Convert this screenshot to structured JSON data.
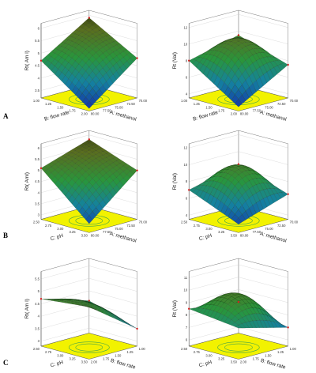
{
  "figure": {
    "panels": [
      {
        "label": "A",
        "row": 0
      },
      {
        "label": "B",
        "row": 1
      },
      {
        "label": "C",
        "row": 2
      }
    ]
  },
  "chart_data": [
    {
      "type": "surface",
      "title": "",
      "zlabel": "Rt( Am l)",
      "xlabel": "A: methanol",
      "ylabel": "B: flow rate",
      "x_ticks": [
        "70.00",
        "72.50",
        "75.00",
        "77.50",
        "80.00"
      ],
      "y_ticks": [
        "1.00",
        "1.25",
        "1.50",
        "1.75",
        "2.00"
      ],
      "z_ticks": [
        "3.5",
        "4",
        "4.5",
        "5",
        "5.5",
        "6"
      ],
      "zlim": [
        3.2,
        6.2
      ],
      "z_corners": {
        "front": 3.3,
        "left": 4.7,
        "right": 4.8,
        "back": 5.9
      },
      "peak": 0.35,
      "colors": {
        "floor": "#f2f200",
        "contour": "#3fa34d"
      }
    },
    {
      "type": "surface",
      "title": "",
      "zlabel": "Rt (Val)",
      "xlabel": "A: methanol",
      "ylabel": "B: flow rate",
      "x_ticks": [
        "70.00",
        "72.50",
        "75.00",
        "77.50",
        "80.00"
      ],
      "y_ticks": [
        "1.00",
        "1.25",
        "1.50",
        "1.75",
        "2.00"
      ],
      "z_ticks": [
        "4",
        "6",
        "8",
        "10",
        "12"
      ],
      "zlim": [
        3.5,
        12.5
      ],
      "z_corners": {
        "front": 4.0,
        "left": 8.0,
        "right": 7.5,
        "back": 9.5
      },
      "peak": 2.6,
      "colors": {
        "floor": "#f2f200",
        "contour": "#3fa34d"
      }
    },
    {
      "type": "surface",
      "title": "",
      "zlabel": "Rt( Aml)",
      "xlabel": "A: methanol",
      "ylabel": "C: pH",
      "x_ticks": [
        "70.00",
        "72.50",
        "75.00",
        "77.50",
        "80.00"
      ],
      "y_ticks": [
        "2.50",
        "2.75",
        "3.00",
        "3.25",
        "3.50"
      ],
      "z_ticks": [
        "3",
        "3.5",
        "4",
        "4.5",
        "5",
        "5.5",
        "6"
      ],
      "zlim": [
        2.8,
        6.2
      ],
      "z_corners": {
        "front": 3.2,
        "left": 5.1,
        "right": 5.0,
        "back": 5.8
      },
      "peak": 0.3,
      "colors": {
        "floor": "#f2f200",
        "contour": "#3fa34d"
      }
    },
    {
      "type": "surface",
      "title": "",
      "zlabel": "Rt (Val)",
      "xlabel": "A: methanol",
      "ylabel": "C: pH",
      "x_ticks": [
        "70.00",
        "72.50",
        "75.00",
        "77.50",
        "80.00"
      ],
      "y_ticks": [
        "2.50",
        "2.75",
        "3.00",
        "3.25",
        "3.50"
      ],
      "z_ticks": [
        "4",
        "6",
        "8",
        "10",
        "12"
      ],
      "zlim": [
        3.5,
        12.5
      ],
      "z_corners": {
        "front": 4.5,
        "left": 7.0,
        "right": 6.5,
        "back": 8.5
      },
      "peak": 2.8,
      "colors": {
        "floor": "#f2f200",
        "contour": "#3fa34d"
      }
    },
    {
      "type": "surface",
      "title": "",
      "zlabel": "Rt( Am l)",
      "xlabel": "B: flow rate",
      "ylabel": "C: pH",
      "x_ticks": [
        "1.00",
        "1.25",
        "1.50",
        "1.75",
        "2.00"
      ],
      "y_ticks": [
        "2.50",
        "2.75",
        "3.00",
        "3.25",
        "3.50"
      ],
      "z_ticks": [
        "3",
        "3.5",
        "4",
        "4.5",
        "5",
        "5.5"
      ],
      "zlim": [
        2.8,
        5.8
      ],
      "z_corners": {
        "front": 4.9,
        "left": 4.7,
        "right": 3.5,
        "back": 4.1
      },
      "peak": 0.25,
      "colors": {
        "floor": "#f2f200",
        "contour": "#3fa34d"
      }
    },
    {
      "type": "surface",
      "title": "",
      "zlabel": "Rt (Val)",
      "xlabel": "B: flow rate",
      "ylabel": "C: pH",
      "x_ticks": [
        "1.00",
        "1.25",
        "1.50",
        "1.75",
        "2.00"
      ],
      "y_ticks": [
        "2.50",
        "2.75",
        "3.00",
        "3.25",
        "3.50"
      ],
      "z_ticks": [
        "6",
        "7",
        "8",
        "9",
        "10",
        "11"
      ],
      "zlim": [
        5.5,
        11.5
      ],
      "z_corners": {
        "front": 8.0,
        "left": 8.5,
        "right": 7.0,
        "back": 8.0
      },
      "peak": 1.8,
      "colors": {
        "floor": "#f2f200",
        "contour": "#3fa34d"
      }
    }
  ]
}
